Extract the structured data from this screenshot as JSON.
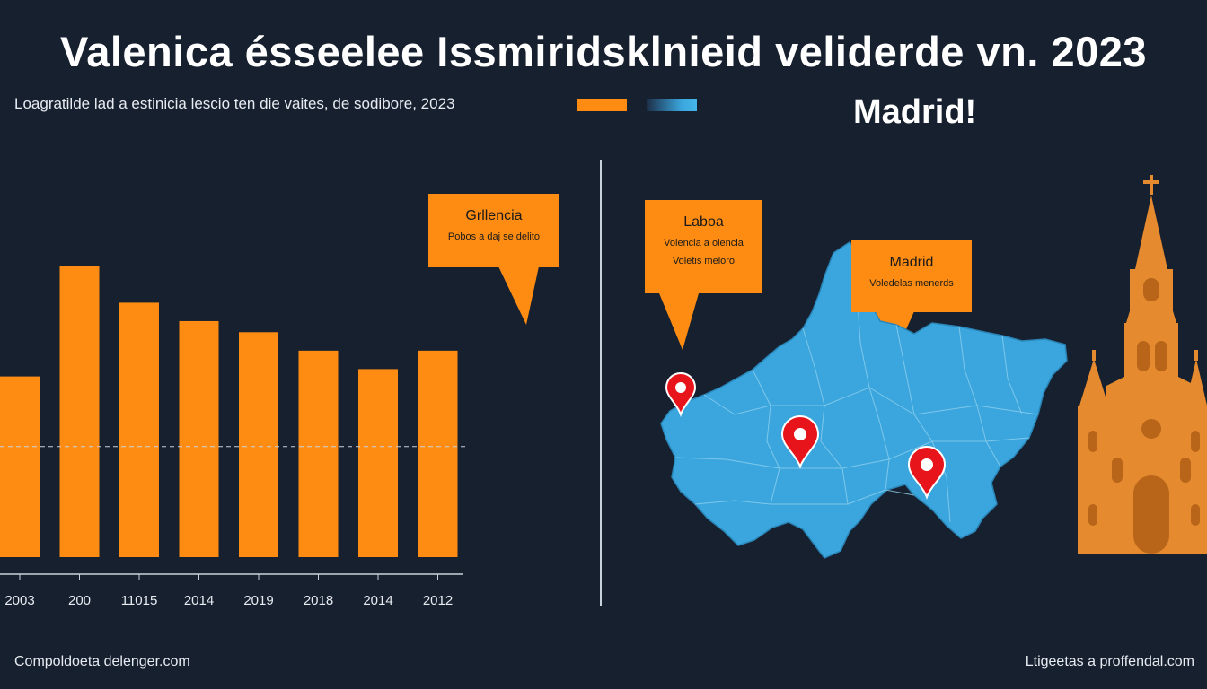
{
  "title": "Valenica ésseelee Issmiridsklnieid veliderde vn. 2023",
  "subtitle": "Loagratilde lad a estinicia lescio ten die vaites, de sodibore, 2023",
  "legend": {
    "colors": [
      "#ff8c12",
      "#3aa6dd"
    ]
  },
  "map_heading": "Madrid!",
  "callouts": {
    "chart": {
      "title": "Grllencia",
      "line1": "Pobos a daj se delito"
    },
    "map_left": {
      "title": "Laboa",
      "line1": "Volencia a olencia",
      "line2": "Voletis meloro"
    },
    "map_right": {
      "title": "Madrid",
      "line1": "Voledelas menerds"
    }
  },
  "footer": {
    "left": "Compoldoeta delenger.com",
    "right": "Ltigeetas a proffendal.com"
  },
  "map": {
    "fill_color": "#3aa6dd",
    "marker_color": "#e8141b",
    "markers": [
      "map-pin-icon",
      "map-pin-icon",
      "map-pin-icon"
    ]
  },
  "illustration": {
    "icon": "church-tower-icon",
    "color": "#e58a2e"
  },
  "chart_data": {
    "type": "bar",
    "categories": [
      "2003",
      "200",
      "11015",
      "2014",
      "2019",
      "2018",
      "2014",
      "2012"
    ],
    "values": [
      49,
      79,
      69,
      64,
      61,
      56,
      51,
      56
    ],
    "ylim": [
      0,
      100
    ],
    "reference_line": 30,
    "bar_color": "#ff8c12",
    "title": "",
    "xlabel": "",
    "ylabel": "",
    "grid": false
  }
}
